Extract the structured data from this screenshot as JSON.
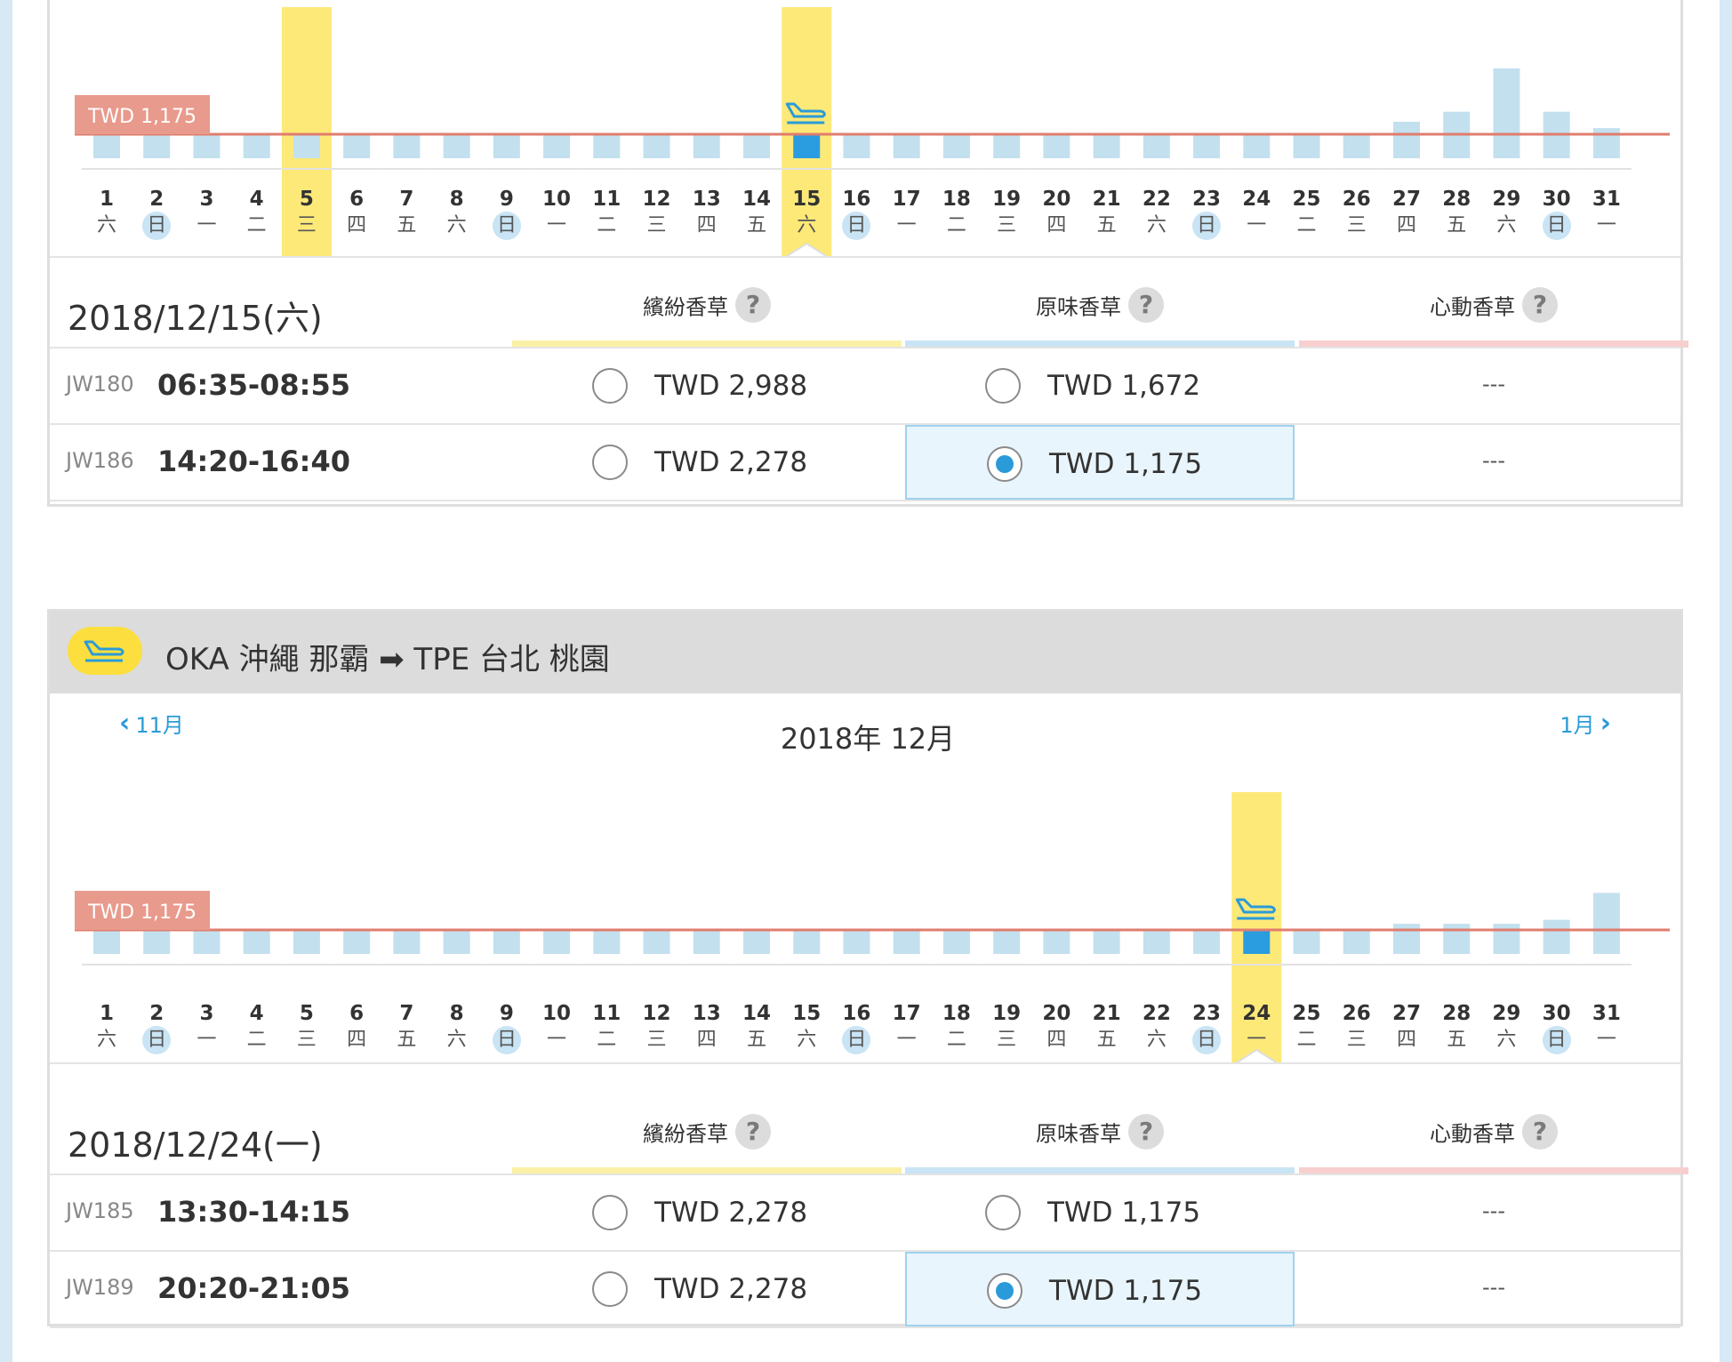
{
  "colors": {
    "bar": "#c3e0ee",
    "bar_selected": "#2a9ce0",
    "highlight": "#fde978",
    "price_line": "#e07d6e",
    "price_tag": "#e89a8c",
    "col_colorful": "#fbf1a6",
    "col_original": "#c9e4f4",
    "col_heart": "#f8cfcf"
  },
  "fare_columns": [
    {
      "name": "繽紛香草",
      "help": "?"
    },
    {
      "name": "原味香草",
      "help": "?"
    },
    {
      "name": "心動香草",
      "help": "?"
    }
  ],
  "sections": [
    {
      "selected_date_label": "2018/12/15(六)",
      "chart_data": {
        "type": "bar",
        "categories": [
          "1",
          "2",
          "3",
          "4",
          "5",
          "6",
          "7",
          "8",
          "9",
          "10",
          "11",
          "12",
          "13",
          "14",
          "15",
          "16",
          "17",
          "18",
          "19",
          "20",
          "21",
          "22",
          "23",
          "24",
          "25",
          "26",
          "27",
          "28",
          "29",
          "30",
          "31"
        ],
        "weekdays": [
          "六",
          "日",
          "一",
          "二",
          "三",
          "四",
          "五",
          "六",
          "日",
          "一",
          "二",
          "三",
          "四",
          "五",
          "六",
          "日",
          "一",
          "二",
          "三",
          "四",
          "五",
          "六",
          "日",
          "一",
          "二",
          "三",
          "四",
          "五",
          "六",
          "日",
          "一"
        ],
        "values": [
          1175,
          1175,
          1175,
          1175,
          1175,
          1175,
          1175,
          1175,
          1175,
          1175,
          1175,
          1175,
          1175,
          1175,
          1175,
          1175,
          1175,
          1175,
          1175,
          1175,
          1175,
          1175,
          1175,
          1175,
          1175,
          1175,
          1785,
          2278,
          4400,
          2278,
          1475
        ],
        "lowest_price_label": "TWD 1,175",
        "reference_value": 1175,
        "highlighted_days": [
          "5",
          "15"
        ],
        "selected_day": "15",
        "sunday_days": [
          "2",
          "9",
          "16",
          "23",
          "30"
        ]
      },
      "flights": [
        {
          "flight_no": "JW180",
          "time": "06:35-08:55",
          "fares": [
            "TWD 2,988",
            "TWD 1,672",
            "---"
          ],
          "selected_fare": null
        },
        {
          "flight_no": "JW186",
          "time": "14:20-16:40",
          "fares": [
            "TWD 2,278",
            "TWD 1,175",
            "---"
          ],
          "selected_fare": 1
        }
      ]
    },
    {
      "route": {
        "text": "OKA 沖繩 那霸 ➡ TPE 台北 桃園",
        "icon": "plane-landing-icon"
      },
      "month_nav": {
        "prev_label": "11月",
        "title": "2018年 12月",
        "next_label": "1月"
      },
      "selected_date_label": "2018/12/24(一)",
      "chart_data": {
        "type": "bar",
        "categories": [
          "1",
          "2",
          "3",
          "4",
          "5",
          "6",
          "7",
          "8",
          "9",
          "10",
          "11",
          "12",
          "13",
          "14",
          "15",
          "16",
          "17",
          "18",
          "19",
          "20",
          "21",
          "22",
          "23",
          "24",
          "25",
          "26",
          "27",
          "28",
          "29",
          "30",
          "31"
        ],
        "weekdays": [
          "六",
          "日",
          "一",
          "二",
          "三",
          "四",
          "五",
          "六",
          "日",
          "一",
          "二",
          "三",
          "四",
          "五",
          "六",
          "日",
          "一",
          "二",
          "三",
          "四",
          "五",
          "六",
          "日",
          "一",
          "二",
          "三",
          "四",
          "五",
          "六",
          "日",
          "一"
        ],
        "values": [
          1175,
          1175,
          1175,
          1175,
          1175,
          1175,
          1175,
          1175,
          1175,
          1175,
          1175,
          1175,
          1175,
          1175,
          1175,
          1175,
          1175,
          1175,
          1175,
          1175,
          1175,
          1175,
          1175,
          1175,
          1175,
          1175,
          1475,
          1475,
          1475,
          1672,
          2988
        ],
        "lowest_price_label": "TWD 1,175",
        "reference_value": 1175,
        "highlighted_days": [
          "24"
        ],
        "selected_day": "24",
        "sunday_days": [
          "2",
          "9",
          "16",
          "23",
          "30"
        ]
      },
      "flights": [
        {
          "flight_no": "JW185",
          "time": "13:30-14:15",
          "fares": [
            "TWD 2,278",
            "TWD 1,175",
            "---"
          ],
          "selected_fare": null
        },
        {
          "flight_no": "JW189",
          "time": "20:20-21:05",
          "fares": [
            "TWD 2,278",
            "TWD 1,175",
            "---"
          ],
          "selected_fare": 1
        }
      ]
    }
  ]
}
